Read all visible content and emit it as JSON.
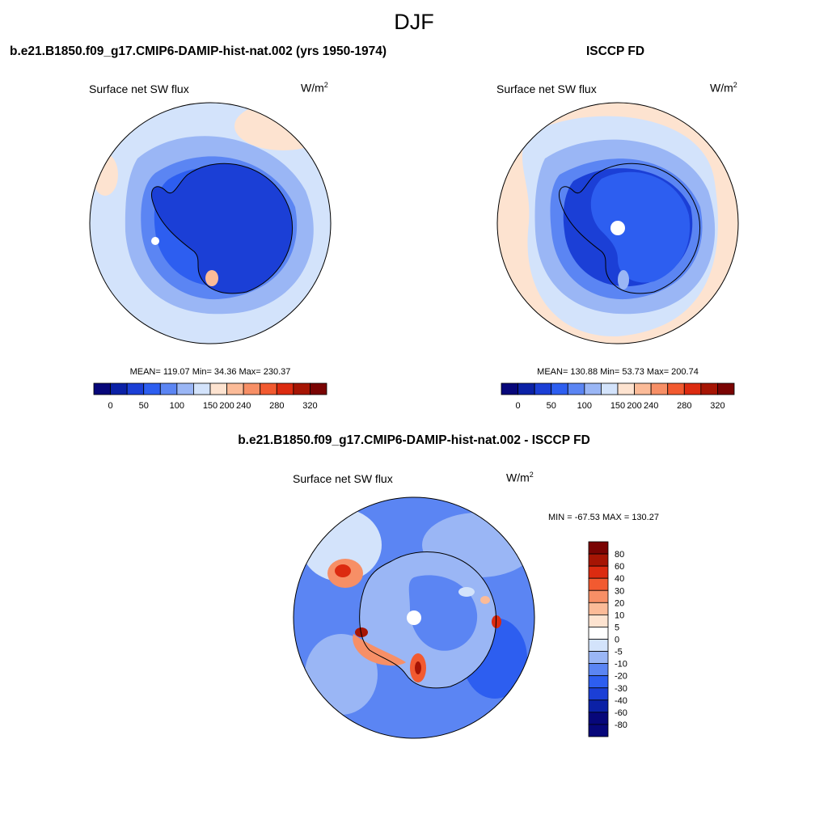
{
  "season": "DJF",
  "panels": [
    {
      "title": "b.e21.B1850.f09_g17.CMIP6-DAMIP-hist-nat.002 (yrs 1950-1974)",
      "variable": "Surface net SW flux",
      "units_base": "W/m",
      "units_exp": "2",
      "stats": "MEAN= 119.07  Min=  34.36  Max= 230.37"
    },
    {
      "title": "ISCCP FD",
      "variable": "Surface net SW flux",
      "units_base": "W/m",
      "units_exp": "2",
      "stats": "MEAN= 130.88  Min=  53.73  Max= 200.74"
    },
    {
      "title": "b.e21.B1850.f09_g17.CMIP6-DAMIP-hist-nat.002 - ISCCP FD",
      "variable": "Surface net SW flux",
      "units_base": "W/m",
      "units_exp": "2",
      "stats": "MIN = -67.53 MAX = 130.27"
    }
  ],
  "colorbar_main": {
    "colors": [
      "#07077a",
      "#0b21a6",
      "#1b3fd6",
      "#2d5ef0",
      "#5b85f3",
      "#9ab6f5",
      "#d3e3fb",
      "#fde3d0",
      "#fbbb98",
      "#f78f66",
      "#f25a30",
      "#dc2b10",
      "#a61504",
      "#7a0403"
    ],
    "labels": [
      "0",
      "50",
      "100",
      "150",
      "200",
      "240",
      "280",
      "320"
    ]
  },
  "colorbar_diff": {
    "colors": [
      "#7a0403",
      "#a61504",
      "#dc2b10",
      "#f25a30",
      "#f78f66",
      "#fbbb98",
      "#fde3d0",
      "#ffffff",
      "#d3e3fb",
      "#9ab6f5",
      "#5b85f3",
      "#2d5ef0",
      "#1b3fd6",
      "#0b21a6",
      "#07077a"
    ],
    "labels": [
      "80",
      "60",
      "40",
      "30",
      "20",
      "10",
      "5",
      "0",
      "-5",
      "-10",
      "-20",
      "-30",
      "-40",
      "-60",
      "-80"
    ]
  }
}
